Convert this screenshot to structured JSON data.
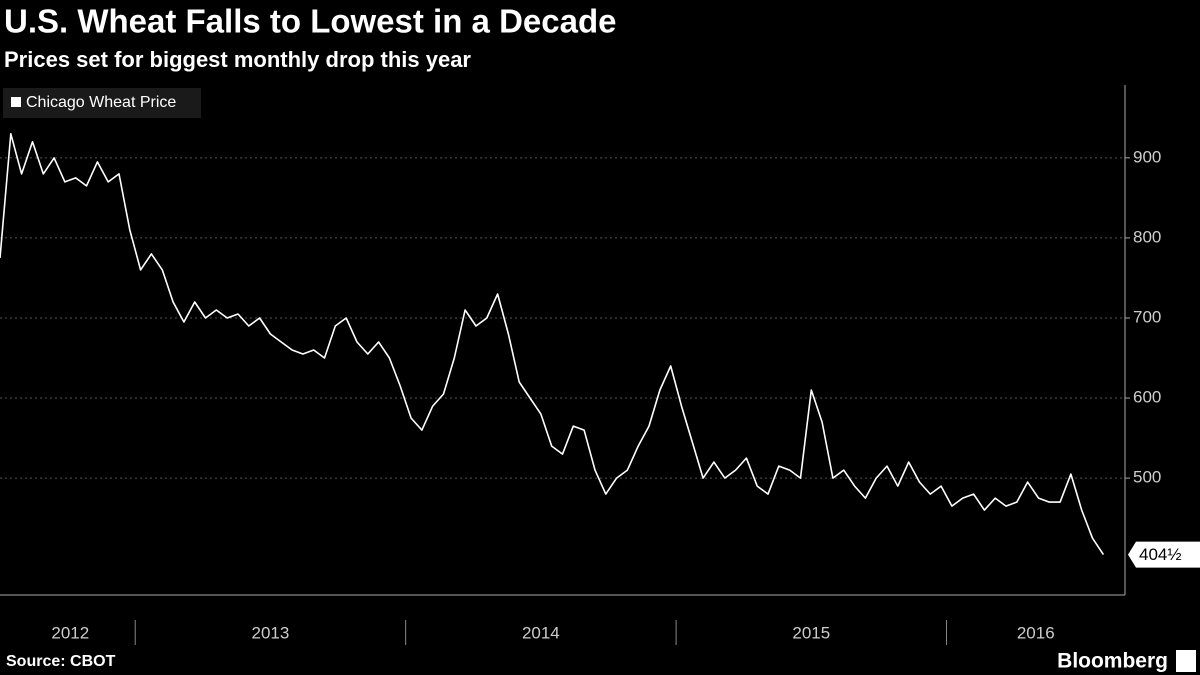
{
  "chart_data": {
    "type": "line",
    "title": "U.S. Wheat Falls to Lowest in a Decade",
    "subtitle": "Prices set for biggest monthly drop this year",
    "source": "Source: CBOT",
    "brand": "Bloomberg",
    "x": [
      2012.5,
      2012.54,
      2012.58,
      2012.62,
      2012.66,
      2012.7,
      2012.74,
      2012.78,
      2012.82,
      2012.86,
      2012.9,
      2012.94,
      2012.98,
      2013.02,
      2013.06,
      2013.1,
      2013.14,
      2013.18,
      2013.22,
      2013.26,
      2013.3,
      2013.34,
      2013.38,
      2013.42,
      2013.46,
      2013.5,
      2013.54,
      2013.58,
      2013.62,
      2013.66,
      2013.7,
      2013.74,
      2013.78,
      2013.82,
      2013.86,
      2013.9,
      2013.94,
      2013.98,
      2014.02,
      2014.06,
      2014.1,
      2014.14,
      2014.18,
      2014.22,
      2014.26,
      2014.3,
      2014.34,
      2014.38,
      2014.42,
      2014.46,
      2014.5,
      2014.54,
      2014.58,
      2014.62,
      2014.66,
      2014.7,
      2014.74,
      2014.78,
      2014.82,
      2014.86,
      2014.9,
      2014.94,
      2014.98,
      2015.02,
      2015.06,
      2015.1,
      2015.14,
      2015.18,
      2015.22,
      2015.26,
      2015.3,
      2015.34,
      2015.38,
      2015.42,
      2015.46,
      2015.5,
      2015.54,
      2015.58,
      2015.62,
      2015.66,
      2015.7,
      2015.74,
      2015.78,
      2015.82,
      2015.86,
      2015.9,
      2015.94,
      2015.98,
      2016.02,
      2016.06,
      2016.1,
      2016.14,
      2016.18,
      2016.22,
      2016.26,
      2016.3,
      2016.34,
      2016.38,
      2016.42,
      2016.46,
      2016.5,
      2016.54,
      2016.58
    ],
    "series": [
      {
        "name": "Chicago Wheat Price",
        "color": "#ffffff",
        "values": [
          775,
          930,
          880,
          920,
          880,
          900,
          870,
          875,
          865,
          895,
          870,
          880,
          810,
          760,
          780,
          760,
          720,
          695,
          720,
          700,
          710,
          700,
          705,
          690,
          700,
          680,
          670,
          660,
          655,
          660,
          650,
          690,
          700,
          670,
          655,
          670,
          650,
          615,
          575,
          560,
          590,
          605,
          650,
          710,
          690,
          700,
          730,
          680,
          620,
          600,
          580,
          540,
          530,
          565,
          560,
          510,
          480,
          500,
          510,
          540,
          565,
          610,
          640,
          590,
          545,
          500,
          520,
          500,
          510,
          525,
          490,
          480,
          515,
          510,
          500,
          610,
          570,
          500,
          510,
          490,
          475,
          500,
          515,
          490,
          520,
          495,
          480,
          490,
          465,
          475,
          480,
          460,
          475,
          465,
          470,
          495,
          475,
          470,
          470,
          505,
          460,
          425,
          404.5
        ]
      }
    ],
    "annotations": [
      {
        "value": 404.5,
        "label": "404½"
      }
    ],
    "xlim": [
      2012.5,
      2016.66
    ],
    "xticks": [
      {
        "value": 2012.76,
        "label": "2012"
      },
      {
        "value": 2013.5,
        "label": "2013"
      },
      {
        "value": 2014.5,
        "label": "2014"
      },
      {
        "value": 2015.5,
        "label": "2015"
      },
      {
        "value": 2016.33,
        "label": "2016"
      }
    ],
    "xbounds": [
      2013,
      2014,
      2015,
      2016
    ],
    "ylim": [
      354,
      991
    ],
    "yticks": [
      500,
      600,
      700,
      800,
      900
    ],
    "grid": true
  }
}
